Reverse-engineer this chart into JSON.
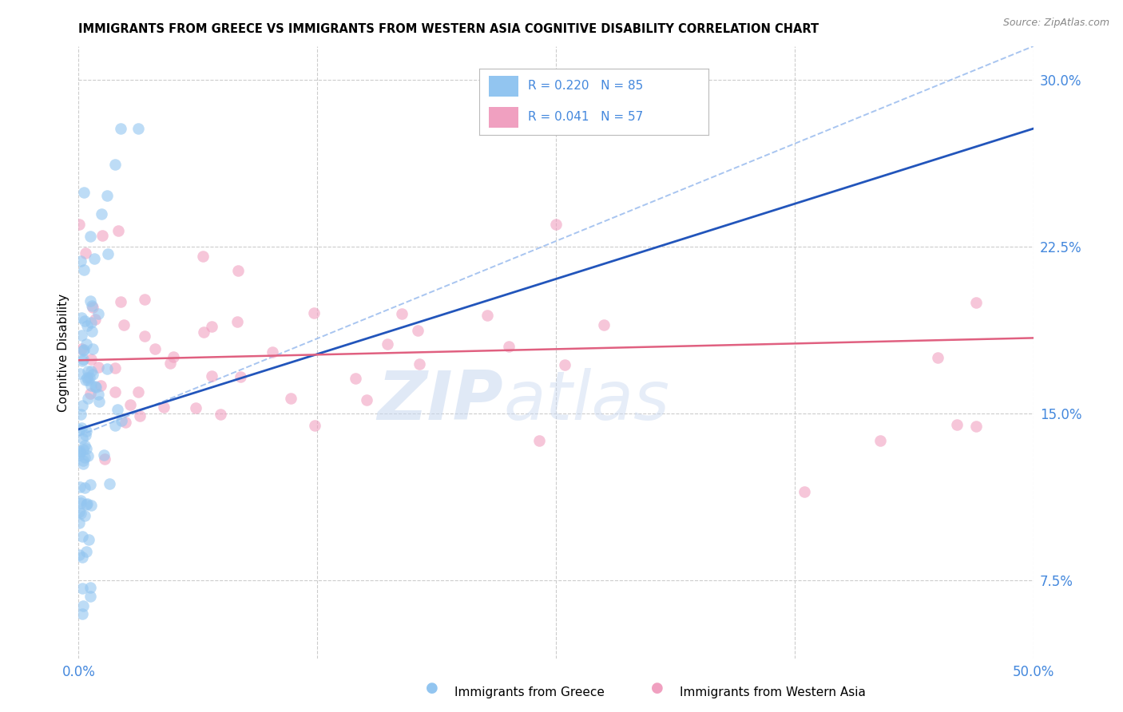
{
  "title": "IMMIGRANTS FROM GREECE VS IMMIGRANTS FROM WESTERN ASIA COGNITIVE DISABILITY CORRELATION CHART",
  "source": "Source: ZipAtlas.com",
  "ylabel": "Cognitive Disability",
  "ytick_values": [
    0.075,
    0.15,
    0.225,
    0.3
  ],
  "ytick_labels": [
    "7.5%",
    "15.0%",
    "22.5%",
    "30.0%"
  ],
  "xtick_values": [
    0.0,
    0.125,
    0.25,
    0.375,
    0.5
  ],
  "xtick_labels": [
    "0.0%",
    "",
    "",
    "",
    "50.0%"
  ],
  "xlim": [
    0.0,
    0.5
  ],
  "ylim": [
    0.04,
    0.315
  ],
  "legend_r1": "R = 0.220",
  "legend_n1": "N = 85",
  "legend_r2": "R = 0.041",
  "legend_n2": "N = 57",
  "greece_color": "#92C5F0",
  "wa_color": "#F0A0C0",
  "greece_line_color": "#2255BB",
  "wa_line_color": "#E06080",
  "dashed_line_color": "#99BBEE",
  "grid_color": "#CCCCCC",
  "axis_label_color": "#4488DD",
  "bottom_legend_greece": "Immigrants from Greece",
  "bottom_legend_wa": "Immigrants from Western Asia",
  "watermark_zip_color": "#C8D8F0",
  "watermark_atlas_color": "#C8D8F0"
}
